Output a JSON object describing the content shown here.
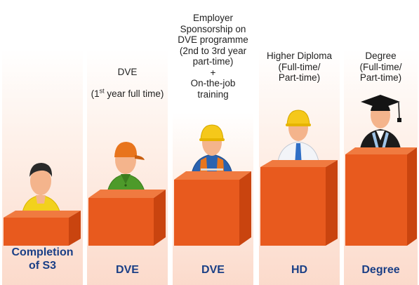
{
  "stages": [
    {
      "id": "s3",
      "figure": "student-figure-icon",
      "description": "",
      "label": "Completion\nof S3",
      "shirt_color": "#f2d11d",
      "hat": "none"
    },
    {
      "id": "dve1",
      "figure": "worker-cap-figure-icon",
      "description_line1": "DVE",
      "description_pre": "(1",
      "description_sup": "st",
      "description_post": " year full time)",
      "label": "DVE",
      "shirt_color": "#4d9a2a",
      "hat": "cap",
      "hat_color": "#e8741c"
    },
    {
      "id": "dve2",
      "figure": "worker-helmet-figure-icon",
      "description": "Employer\nSponsorship on\nDVE programme\n(2nd to 3rd year\npart-time)\n+\nOn-the-job\ntraining",
      "label": "DVE",
      "shirt_color": "#2a63b0",
      "vest_color": "#e8761e",
      "hat": "helmet",
      "hat_color": "#f5c81a"
    },
    {
      "id": "hd",
      "figure": "engineer-helmet-figure-icon",
      "description": "Higher Diploma\n(Full-time/\nPart-time)",
      "label": "HD",
      "shirt_color": "#f2f4f8",
      "tie_color": "#2f6fc6",
      "hat": "helmet",
      "hat_color": "#f5c81a"
    },
    {
      "id": "degree",
      "figure": "graduate-figure-icon",
      "description": "Degree\n(Full-time/\nPart-time)",
      "label": "Degree",
      "shirt_color": "#1b1b1b",
      "hat": "mortarboard",
      "hat_color": "#141414"
    }
  ],
  "colors": {
    "box_front": "#e85a1e",
    "box_side": "#c9440f",
    "box_top": "#f07a40",
    "label_text": "#1a3f86",
    "skin": "#f4b48c"
  }
}
